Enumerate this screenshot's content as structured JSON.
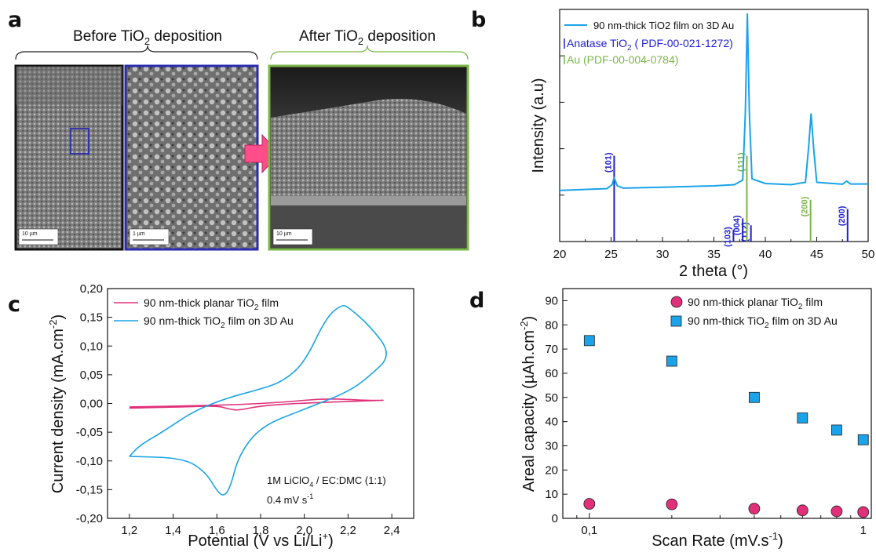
{
  "panels": {
    "a": {
      "label": "a",
      "before_label": "Before TiO",
      "before_sub": "2",
      "before_suffix": " deposition",
      "after_label": "After TiO",
      "after_sub": "2",
      "after_suffix": " deposition",
      "scale_left": "10 µm",
      "scale_mid": "1 µm",
      "scale_right": "10 µm",
      "colors": {
        "frame1": "#111111",
        "frame2": "#2b2bb0",
        "frame3": "#7ab648",
        "arrow": "#ff4d8a"
      }
    },
    "b": {
      "label": "b"
    },
    "c": {
      "label": "c"
    },
    "d": {
      "label": "d"
    }
  },
  "chart_data": [
    {
      "panel": "b",
      "type": "line",
      "xlabel": "2 theta (°)",
      "ylabel": "Intensity (a.u)",
      "xlim": [
        20,
        50
      ],
      "xticks": [
        "20",
        "25",
        "30",
        "35",
        "40",
        "45",
        "50"
      ],
      "x_tick_values": [
        20,
        25,
        30,
        35,
        40,
        45,
        50
      ],
      "ylim": [
        0,
        100
      ],
      "y_tick_labels_shown": false,
      "legend": {
        "series_name": "90 nm-thick TiO2 film on 3D Au",
        "ref1": "Anatase TiO",
        "ref1_sub": "2",
        "ref1_suffix": " ( PDF-00-021-1272)",
        "ref2": "Au (PDF-00-004-0784)"
      },
      "series": [
        {
          "name": "90 nm-thick TiO2 film on 3D Au",
          "color": "#1aa3e8",
          "points": [
            [
              20,
              22
            ],
            [
              24.6,
              22.8
            ],
            [
              25.1,
              24.5
            ],
            [
              25.3,
              27.5
            ],
            [
              25.6,
              24
            ],
            [
              26.2,
              23
            ],
            [
              30,
              23.4
            ],
            [
              35,
              24
            ],
            [
              37,
              24.5
            ],
            [
              37.8,
              26.5
            ],
            [
              38.05,
              55
            ],
            [
              38.25,
              98
            ],
            [
              38.45,
              55
            ],
            [
              38.7,
              27
            ],
            [
              40,
              25
            ],
            [
              42.5,
              24.5
            ],
            [
              43.9,
              25.5
            ],
            [
              44.2,
              40
            ],
            [
              44.45,
              55
            ],
            [
              44.7,
              40
            ],
            [
              45,
              25.5
            ],
            [
              47.5,
              24.7
            ],
            [
              47.9,
              26
            ],
            [
              48.3,
              24.8
            ],
            [
              50,
              24.8
            ]
          ]
        }
      ],
      "references": [
        {
          "name": "Anatase TiO2",
          "color": "#1f1fd0",
          "lines": [
            {
              "x": 25.3,
              "h": 37,
              "label": "(101)"
            },
            {
              "x": 36.9,
              "h": 5,
              "label": "(103)"
            },
            {
              "x": 37.8,
              "h": 10,
              "label": "(004)"
            },
            {
              "x": 38.6,
              "h": 7,
              "label": "(112)"
            },
            {
              "x": 48.0,
              "h": 14,
              "label": "(200)"
            }
          ]
        },
        {
          "name": "Au",
          "color": "#7ab648",
          "lines": [
            {
              "x": 38.2,
              "h": 37,
              "label": "(111)"
            },
            {
              "x": 44.4,
              "h": 18,
              "label": "(200)"
            }
          ]
        }
      ]
    },
    {
      "panel": "c",
      "type": "line",
      "xlabel": "Potential (V vs Li/Li",
      "xlabel_sup": "+",
      "xlabel_suffix": ")",
      "ylabel": "Current density (mA.cm",
      "ylabel_sup": "-2",
      "ylabel_suffix": ")",
      "xlim": [
        1.1,
        2.5
      ],
      "ylim": [
        -0.2,
        0.2
      ],
      "xticks": [
        "1,2",
        "1,4",
        "1,6",
        "1,8",
        "2,0",
        "2,2",
        "2,4"
      ],
      "x_tick_values": [
        1.2,
        1.4,
        1.6,
        1.8,
        2.0,
        2.2,
        2.4
      ],
      "yticks": [
        "-0,20",
        "-0,15",
        "-0,10",
        "-0,05",
        "0,00",
        "0,05",
        "0,10",
        "0,15",
        "0,20"
      ],
      "y_tick_values": [
        -0.2,
        -0.15,
        -0.1,
        -0.05,
        0,
        0.05,
        0.1,
        0.15,
        0.2
      ],
      "annotation1": "1M LiClO",
      "annotation1_sub": "4",
      "annotation1_suffix": " / EC:DMC (1:1)",
      "annotation2": "0.4 mV s",
      "annotation2_sup": "-1",
      "series": [
        {
          "name": "90 nm-thick planar TiO2 film",
          "name_main": "90 nm-thick planar TiO",
          "name_sub": "2",
          "name_suffix": " film",
          "color": "#e0307a",
          "points": [
            [
              1.2,
              -0.008
            ],
            [
              1.45,
              -0.006
            ],
            [
              1.6,
              -0.004
            ],
            [
              1.66,
              -0.01
            ],
            [
              1.7,
              -0.012
            ],
            [
              1.8,
              -0.004
            ],
            [
              2.0,
              0.001
            ],
            [
              2.4,
              0.006
            ],
            [
              2.3,
              0.005
            ],
            [
              2.1,
              0.009
            ],
            [
              1.9,
              0.002
            ],
            [
              1.7,
              -0.002
            ],
            [
              1.5,
              -0.004
            ],
            [
              1.2,
              -0.006
            ]
          ]
        },
        {
          "name": "90 nm-thick TiO2 film on 3D Au",
          "name_main": "90 nm-thick TiO",
          "name_sub": "2",
          "name_suffix": " film on 3D Au",
          "color": "#1aa3e8",
          "points": [
            [
              1.2,
              -0.092
            ],
            [
              1.45,
              -0.095
            ],
            [
              1.55,
              -0.12
            ],
            [
              1.6,
              -0.152
            ],
            [
              1.63,
              -0.162
            ],
            [
              1.66,
              -0.148
            ],
            [
              1.7,
              -0.09
            ],
            [
              1.8,
              -0.04
            ],
            [
              2.0,
              -0.01
            ],
            [
              2.2,
              0.02
            ],
            [
              2.3,
              0.048
            ],
            [
              2.4,
              0.085
            ],
            [
              2.3,
              0.135
            ],
            [
              2.2,
              0.168
            ],
            [
              2.17,
              0.172
            ],
            [
              2.1,
              0.15
            ],
            [
              2.0,
              0.07
            ],
            [
              1.9,
              0.038
            ],
            [
              1.8,
              0.025
            ],
            [
              1.65,
              0.01
            ],
            [
              1.5,
              -0.012
            ],
            [
              1.35,
              -0.05
            ],
            [
              1.25,
              -0.072
            ],
            [
              1.2,
              -0.092
            ]
          ]
        }
      ]
    },
    {
      "panel": "d",
      "type": "scatter",
      "x_scale": "log",
      "xlabel": "Scan Rate (mV.s",
      "xlabel_sup": "-1",
      "xlabel_suffix": ")",
      "ylabel": "Areal capacity (µAh.cm",
      "ylabel_sup": "-2",
      "ylabel_suffix": ")",
      "xlim": [
        0.08,
        1.07
      ],
      "ylim": [
        0,
        95
      ],
      "xticks": [
        "0,1",
        "1"
      ],
      "x_tick_values": [
        0.1,
        1
      ],
      "yticks": [
        "0",
        "10",
        "20",
        "30",
        "40",
        "50",
        "60",
        "70",
        "80",
        "90"
      ],
      "y_tick_values": [
        0,
        10,
        20,
        30,
        40,
        50,
        60,
        70,
        80,
        90
      ],
      "series": [
        {
          "name": "90 nm-thick planar TiO2 film",
          "name_main": "90 nm-thick planar TiO",
          "name_sub": "2",
          "name_suffix": " film",
          "color": "#e0307a",
          "marker": "circle",
          "x": [
            0.1,
            0.2,
            0.4,
            0.6,
            0.8,
            1.0
          ],
          "y": [
            6,
            5.8,
            4,
            3.3,
            2.9,
            2.6
          ]
        },
        {
          "name": "90 nm-thick TiO2 film on 3D Au",
          "name_main": "90 nm-thick TiO",
          "name_sub": "2",
          "name_suffix": " film on 3D Au",
          "color": "#1aa3e8",
          "marker": "square",
          "x": [
            0.1,
            0.2,
            0.4,
            0.6,
            0.8,
            1.0
          ],
          "y": [
            73.5,
            65,
            50,
            41.5,
            36.5,
            32.5
          ]
        }
      ]
    }
  ]
}
